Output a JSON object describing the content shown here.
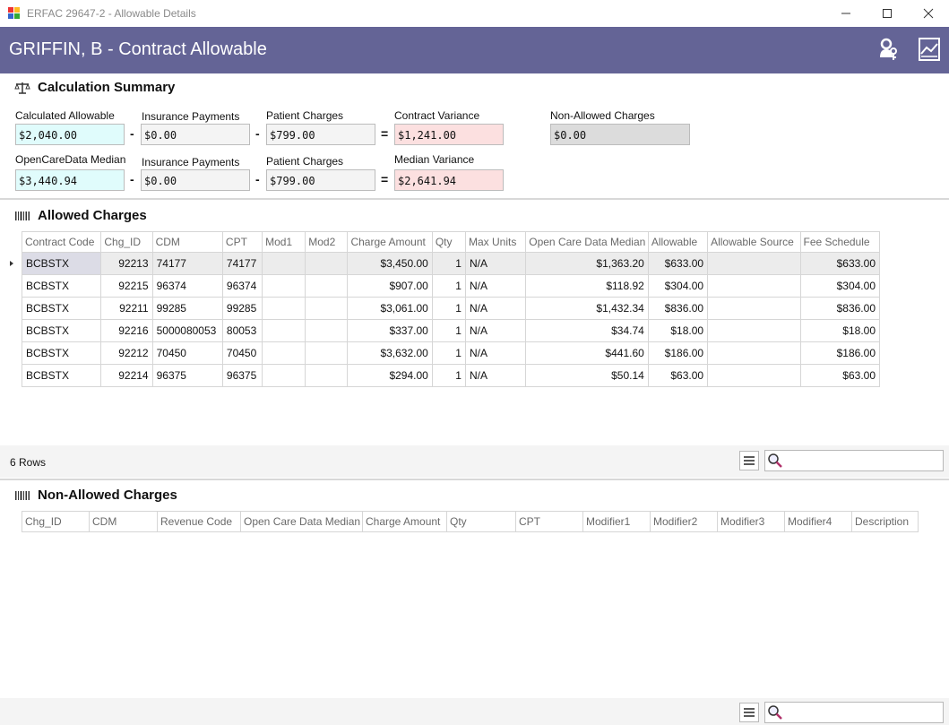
{
  "window": {
    "title": "ERFAC 29647-2 - Allowable Details"
  },
  "header": {
    "title": "GRIFFIN, B - Contract Allowable"
  },
  "calc": {
    "section_title": "Calculation Summary",
    "row1": {
      "calculated_allowable_label": "Calculated Allowable",
      "calculated_allowable": "$2,040.00",
      "insurance_payments_label": "Insurance Payments",
      "insurance_payments": "$0.00",
      "patient_charges_label": "Patient Charges",
      "patient_charges": "$799.00",
      "contract_variance_label": "Contract Variance",
      "contract_variance": "$1,241.00",
      "non_allowed_label": "Non-Allowed Charges",
      "non_allowed": "$0.00"
    },
    "row2": {
      "median_label": "OpenCareData Median",
      "median": "$3,440.94",
      "insurance_payments_label": "Insurance Payments",
      "insurance_payments": "$0.00",
      "patient_charges_label": "Patient Charges",
      "patient_charges": "$799.00",
      "median_variance_label": "Median Variance",
      "median_variance": "$2,641.94"
    },
    "minus": "-",
    "equals": "="
  },
  "allowed": {
    "section_title": "Allowed Charges",
    "columns": [
      "Contract Code",
      "Chg_ID",
      "CDM",
      "CPT",
      "Mod1",
      "Mod2",
      "Charge Amount",
      "Qty",
      "Max Units",
      "Open Care Data Median",
      "Allowable",
      "Allowable Source",
      "Fee Schedule"
    ],
    "rows": [
      [
        "BCBSTX",
        "92213",
        "74177",
        "74177",
        "",
        "",
        "$3,450.00",
        "1",
        "N/A",
        "$1,363.20",
        "$633.00",
        "",
        "$633.00"
      ],
      [
        "BCBSTX",
        "92215",
        "96374",
        "96374",
        "",
        "",
        "$907.00",
        "1",
        "N/A",
        "$118.92",
        "$304.00",
        "",
        "$304.00"
      ],
      [
        "BCBSTX",
        "92211",
        "99285",
        "99285",
        "",
        "",
        "$3,061.00",
        "1",
        "N/A",
        "$1,432.34",
        "$836.00",
        "",
        "$836.00"
      ],
      [
        "BCBSTX",
        "92216",
        "5000080053",
        "80053",
        "",
        "",
        "$337.00",
        "1",
        "N/A",
        "$34.74",
        "$18.00",
        "",
        "$18.00"
      ],
      [
        "BCBSTX",
        "92212",
        "70450",
        "70450",
        "",
        "",
        "$3,632.00",
        "1",
        "N/A",
        "$441.60",
        "$186.00",
        "",
        "$186.00"
      ],
      [
        "BCBSTX",
        "92214",
        "96375",
        "96375",
        "",
        "",
        "$294.00",
        "1",
        "N/A",
        "$50.14",
        "$63.00",
        "",
        "$63.00"
      ]
    ],
    "row_count": "6 Rows",
    "search_value": ""
  },
  "non_allowed": {
    "section_title": "Non-Allowed Charges",
    "columns": [
      "Chg_ID",
      "CDM",
      "Revenue Code",
      "Open Care Data Median",
      "Charge Amount",
      "Qty",
      "CPT",
      "Modifier1",
      "Modifier2",
      "Modifier3",
      "Modifier4",
      "Description"
    ],
    "search_value": ""
  },
  "colors": {
    "header_bg": "#646496",
    "cyan_field": "#e0fcfc",
    "red_field": "#fce0e0",
    "gray_field": "#dcdcdc"
  },
  "icons": {
    "app": "app-icon",
    "header_left": "user-key-icon",
    "header_right": "chart-report-icon",
    "calc": "scales-icon",
    "grid": "barcode-icon",
    "menu": "hamburger-menu-icon",
    "search": "magnifier-icon"
  }
}
